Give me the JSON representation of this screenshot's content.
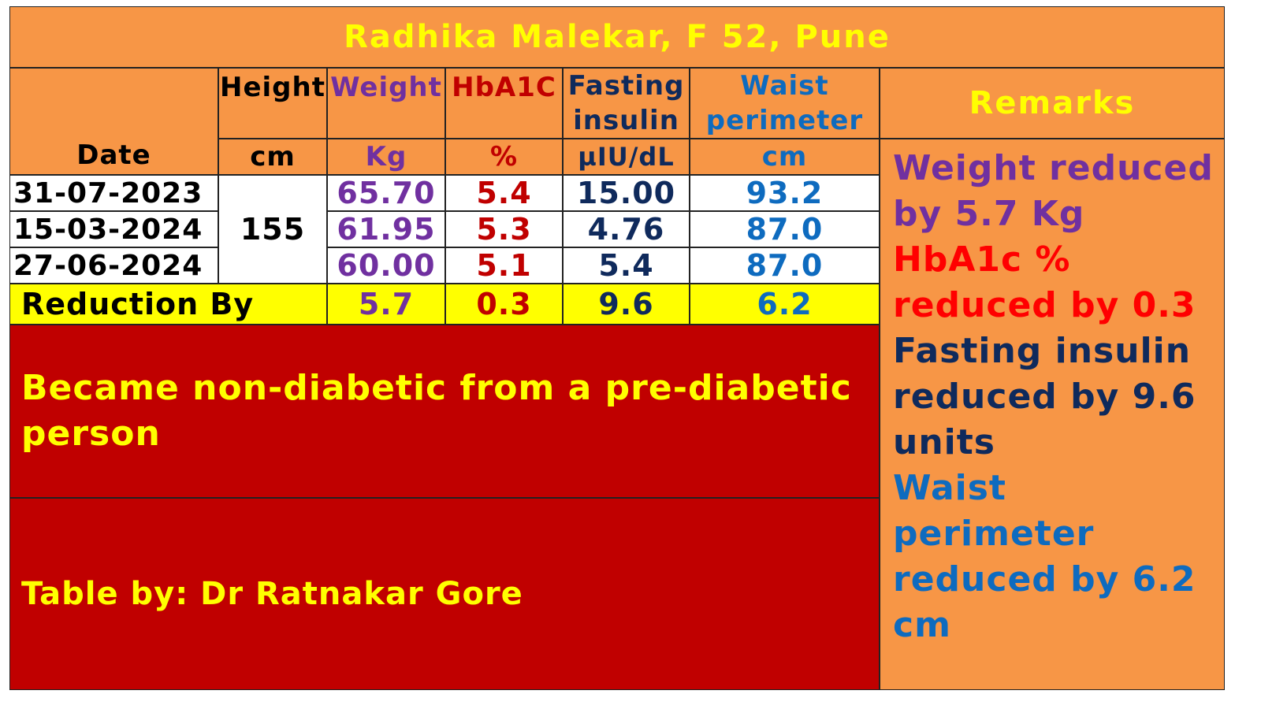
{
  "title": "Radhika Malekar, F 52, Pune",
  "headers": {
    "date": "Date",
    "height": "Height",
    "height_unit": "cm",
    "weight": "Weight",
    "weight_unit": "Kg",
    "hba1c": "HbA1C",
    "hba1c_unit": "%",
    "fasting_line1": "Fasting",
    "fasting_line2": "insulin",
    "fasting_unit": "µIU/dL",
    "waist_line1": "Waist",
    "waist_line2": "perimeter",
    "waist_unit": "cm",
    "remarks": "Remarks"
  },
  "height_value": "155",
  "rows": [
    {
      "date": "31-07-2023",
      "weight": "65.70",
      "hba1c": "5.4",
      "fasting": "15.00",
      "waist": "93.2"
    },
    {
      "date": "15-03-2024",
      "weight": "61.95",
      "hba1c": "5.3",
      "fasting": "4.76",
      "waist": "87.0"
    },
    {
      "date": "27-06-2024",
      "weight": "60.00",
      "hba1c": "5.1",
      "fasting": "5.4",
      "waist": "87.0"
    }
  ],
  "reduction": {
    "label": "Reduction By",
    "weight": "5.7",
    "hba1c": "0.3",
    "fasting": "9.6",
    "waist": "6.2"
  },
  "conclusion": "Became non-diabetic from a pre-diabetic person",
  "credit": "Table by: Dr Ratnakar Gore",
  "remarks": {
    "weight": "Weight reduced by 5.7 Kg",
    "hba1c": "HbA1c % reduced by 0.3",
    "fasting": "Fasting insulin reduced by 9.6 units",
    "waist": "Waist perimeter reduced by 6.2 cm"
  },
  "colors": {
    "orange": "#F79646",
    "yellow": "#FFFF00",
    "dark_red": "#C00000",
    "purple": "#7030A0",
    "navy": "#0F2A5C",
    "blue": "#0E6BBF"
  }
}
